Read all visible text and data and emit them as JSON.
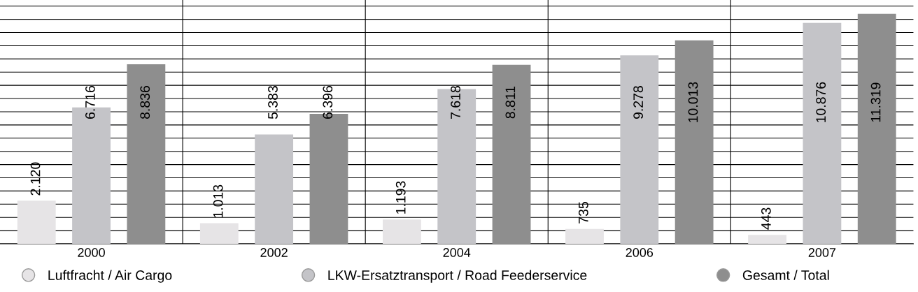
{
  "chart_data": {
    "type": "bar",
    "categories": [
      "2000",
      "2002",
      "2004",
      "2006",
      "2007"
    ],
    "series": [
      {
        "name": "Luftfracht / Air Cargo",
        "color": "#e6e4e6",
        "values": [
          2120,
          1013,
          1193,
          735,
          443
        ],
        "value_labels": [
          "2.120",
          "1.013",
          "1.193",
          "735",
          "443"
        ]
      },
      {
        "name": "LKW-Ersatztransport / Road Feederservice",
        "color": "#c4c4c8",
        "values": [
          6716,
          5383,
          7618,
          9278,
          10876
        ],
        "value_labels": [
          "6.716",
          "5.383",
          "7.618",
          "9.278",
          "10.876"
        ]
      },
      {
        "name": "Gesamt / Total",
        "color": "#8e8e8e",
        "values": [
          8836,
          6396,
          8811,
          10013,
          11319
        ],
        "value_labels": [
          "8.836",
          "6.396",
          "8.811",
          "10.013",
          "11.319"
        ]
      }
    ],
    "ylim": [
      0,
      12000
    ],
    "yticks": [
      {
        "value": 0,
        "label": null
      },
      {
        "value": 650,
        "label": null
      },
      {
        "value": 1300,
        "label": null
      },
      {
        "value": 1950,
        "label": null
      },
      {
        "value": 2600,
        "label": null
      },
      {
        "value": 3250,
        "label": null
      },
      {
        "value": 3900,
        "label": null
      },
      {
        "value": 4550,
        "label": null
      },
      {
        "value": 5200,
        "label": null
      },
      {
        "value": 5850,
        "label": null
      },
      {
        "value": 6500,
        "label": null
      },
      {
        "value": 7150,
        "label": null
      },
      {
        "value": 7800,
        "label": null
      },
      {
        "value": 8450,
        "label": null
      },
      {
        "value": 9100,
        "label": null
      },
      {
        "value": 9750,
        "label": null
      },
      {
        "value": 10400,
        "label": null
      },
      {
        "value": 11050,
        "label": null
      },
      {
        "value": 11700,
        "label": null
      }
    ],
    "tick_labels": "x",
    "grid": true,
    "legend": "bottom"
  }
}
